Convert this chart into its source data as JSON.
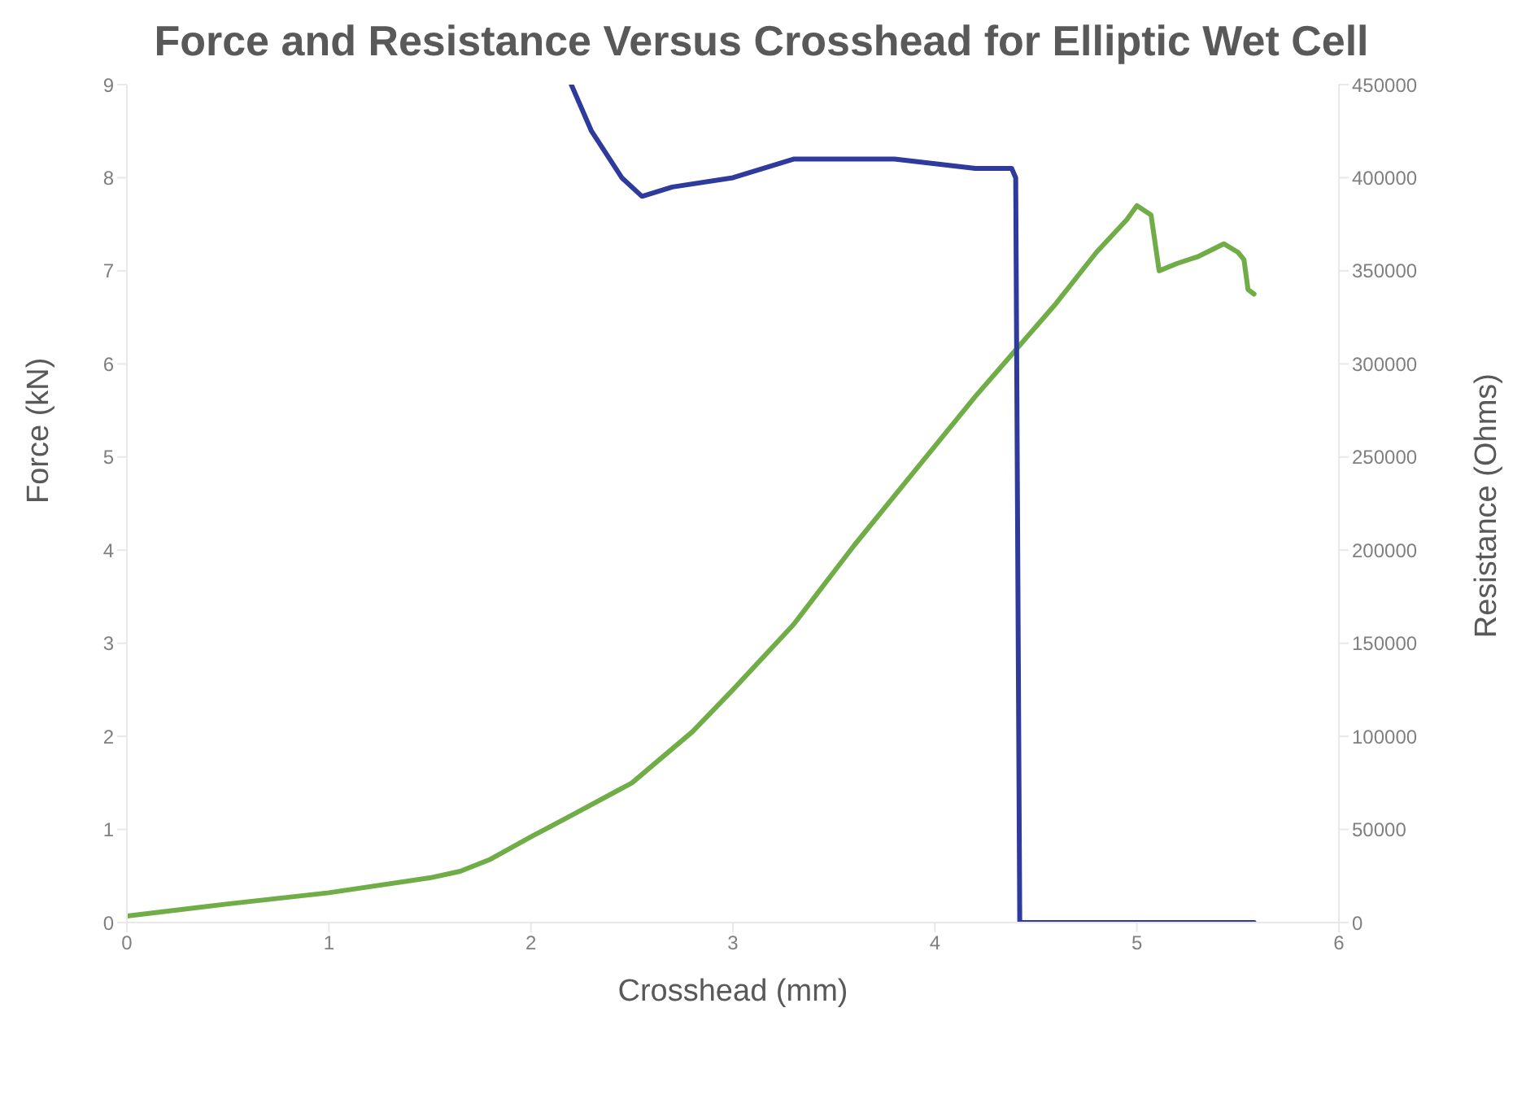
{
  "chart_data": {
    "type": "line",
    "title": "Force and Resistance Versus Crosshead for Elliptic Wet Cell",
    "xlabel": "Crosshead (mm)",
    "ylabel": "Force (kN)",
    "y2label": "Resistance (Ohms)",
    "xlim": [
      0,
      6
    ],
    "xticks": [
      0,
      1,
      2,
      3,
      4,
      5,
      6
    ],
    "ylim": [
      0,
      9
    ],
    "yticks": [
      0,
      1,
      2,
      3,
      4,
      5,
      6,
      7,
      8,
      9
    ],
    "y2lim": [
      0,
      450000
    ],
    "y2ticks": [
      0,
      50000,
      100000,
      150000,
      200000,
      250000,
      300000,
      350000,
      400000,
      450000
    ],
    "grid": false,
    "legend": false,
    "marker": "none",
    "line_style": "solid",
    "series": [
      {
        "color": "#70ad47",
        "x": [
          0,
          0.5,
          1.0,
          1.5,
          1.65,
          1.8,
          2.0,
          2.2,
          2.5,
          2.8,
          3.0,
          3.3,
          3.6,
          3.9,
          4.2,
          4.4,
          4.6,
          4.8,
          4.95,
          5.0,
          5.07,
          5.11,
          5.2,
          5.3,
          5.43,
          5.5,
          5.53,
          5.55,
          5.58
        ],
        "values": [
          0.07,
          0.2,
          0.32,
          0.48,
          0.55,
          0.68,
          0.92,
          1.15,
          1.5,
          2.05,
          2.5,
          3.2,
          4.05,
          4.85,
          5.65,
          6.15,
          6.65,
          7.2,
          7.55,
          7.7,
          7.6,
          7.0,
          7.08,
          7.15,
          7.29,
          7.2,
          7.12,
          6.8,
          6.75
        ]
      },
      {
        "color": "#2e3a9c",
        "axis": "y2",
        "x": [
          2.2,
          2.3,
          2.45,
          2.55,
          2.7,
          3.0,
          3.3,
          3.5,
          3.8,
          4.2,
          4.38,
          4.4,
          4.42,
          4.6,
          5.0,
          5.58
        ],
        "values": [
          450000,
          425000,
          400000,
          390000,
          395000,
          400000,
          410000,
          410000,
          410000,
          405000,
          405000,
          400000,
          0,
          0,
          0,
          0
        ]
      }
    ]
  }
}
